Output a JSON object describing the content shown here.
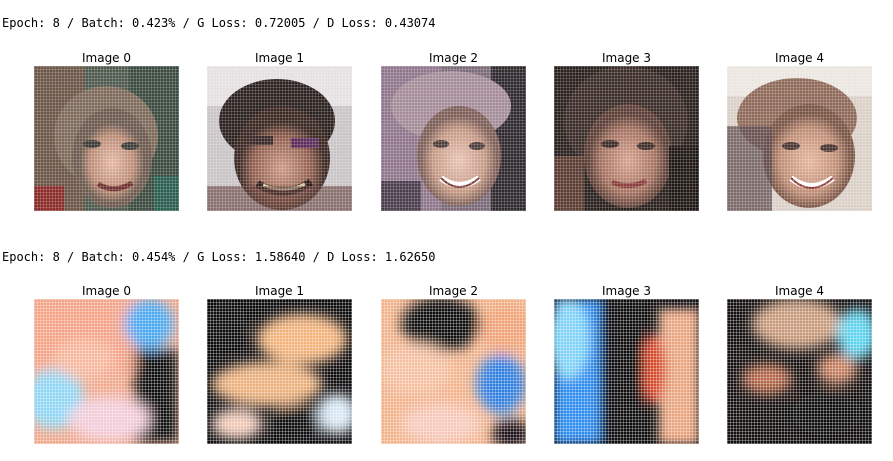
{
  "rows": [
    {
      "status": "Epoch: 8 / Batch: 0.423% / G Loss: 0.72005 / D Loss: 0.43074",
      "titles": [
        "Image 0",
        "Image 1",
        "Image 2",
        "Image 3",
        "Image 4"
      ]
    },
    {
      "status": "Epoch: 8 / Batch: 0.454% / G Loss: 1.58640 / D Loss: 1.62650",
      "titles": [
        "Image 0",
        "Image 1",
        "Image 2",
        "Image 3",
        "Image 4"
      ]
    }
  ]
}
